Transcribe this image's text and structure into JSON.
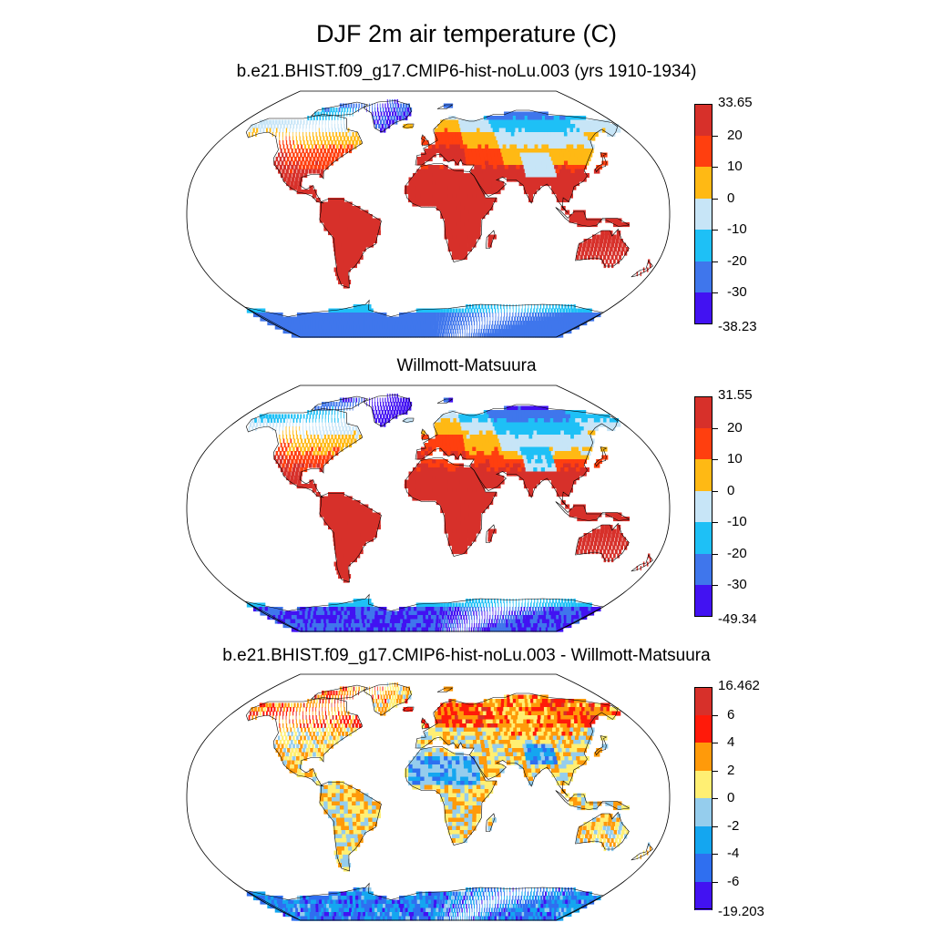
{
  "title": "DJF 2m air temperature (C)",
  "chart_data": [
    {
      "type": "heatmap",
      "projection": "Robinson",
      "title": "b.e21.BHIST.f09_g17.CMIP6-hist-noLu.003 (yrs 1910-1934)",
      "variable": "DJF 2m air temperature",
      "units": "C",
      "colorbar": {
        "max_label": "33.65",
        "min_label": "-38.23",
        "tick_labels": [
          "20",
          "10",
          "0",
          "-10",
          "-20",
          "-30"
        ],
        "colors": [
          "#d7302a",
          "#ff3f0f",
          "#ffb914",
          "#c7e5f7",
          "#1ec0f6",
          "#3f76ec",
          "#4212f2"
        ]
      }
    },
    {
      "type": "heatmap",
      "projection": "Robinson",
      "title": "Willmott-Matsuura",
      "variable": "DJF 2m air temperature",
      "units": "C",
      "colorbar": {
        "max_label": "31.55",
        "min_label": "-49.34",
        "tick_labels": [
          "20",
          "10",
          "0",
          "-10",
          "-20",
          "-30"
        ],
        "colors": [
          "#d7302a",
          "#ff3f0f",
          "#ffb914",
          "#c7e5f7",
          "#1ec0f6",
          "#3f76ec",
          "#4212f2"
        ]
      }
    },
    {
      "type": "heatmap",
      "projection": "Robinson",
      "title": "b.e21.BHIST.f09_g17.CMIP6-hist-noLu.003 - Willmott-Matsuura",
      "variable": "DJF 2m air temperature difference",
      "units": "C",
      "colorbar": {
        "max_label": "16.462",
        "min_label": "-19.203",
        "tick_labels": [
          "6",
          "4",
          "2",
          "0",
          "-2",
          "-4",
          "-6"
        ],
        "colors": [
          "#d7302a",
          "#ff1a0a",
          "#ff9a0a",
          "#ffef73",
          "#95cded",
          "#14a6f0",
          "#2f6ff0",
          "#4212f2"
        ]
      }
    }
  ]
}
